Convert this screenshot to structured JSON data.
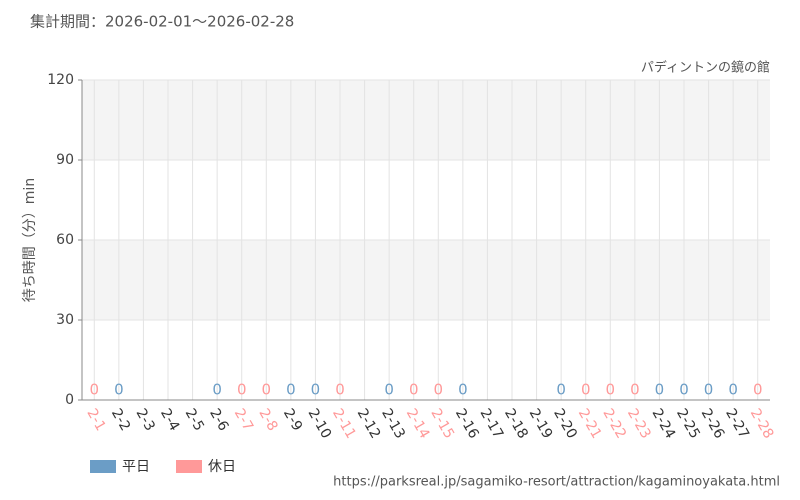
{
  "chart_data": {
    "type": "bar",
    "title": "集計期間：2026-02-01～2026-02-28",
    "subtitle": "パディントンの鏡の館",
    "y_label": "待ち時間（分）min",
    "source": "https://parksreal.jp/sagamiko-resort/attraction/kagaminoyakata.html",
    "categories": [
      "2-1",
      "2-2",
      "2-3",
      "2-4",
      "2-5",
      "2-6",
      "2-7",
      "2-8",
      "2-9",
      "2-10",
      "2-11",
      "2-12",
      "2-13",
      "2-14",
      "2-15",
      "2-16",
      "2-17",
      "2-18",
      "2-19",
      "2-20",
      "2-21",
      "2-22",
      "2-23",
      "2-24",
      "2-25",
      "2-26",
      "2-27",
      "2-28"
    ],
    "series": [
      {
        "name": "平日",
        "color": "#6b9dc6",
        "values": [
          null,
          0,
          null,
          null,
          null,
          0,
          null,
          null,
          0,
          0,
          null,
          null,
          0,
          null,
          null,
          0,
          null,
          null,
          null,
          0,
          null,
          null,
          null,
          0,
          0,
          0,
          0,
          null
        ]
      },
      {
        "name": "休日",
        "color": "#ff9999",
        "values": [
          0,
          null,
          null,
          null,
          null,
          null,
          0,
          0,
          null,
          null,
          0,
          null,
          null,
          0,
          0,
          null,
          null,
          null,
          null,
          null,
          0,
          0,
          0,
          null,
          null,
          null,
          null,
          0
        ]
      }
    ],
    "ylim": [
      0,
      120
    ],
    "yticks": [
      0,
      30,
      60,
      90,
      120
    ],
    "grid": true
  }
}
